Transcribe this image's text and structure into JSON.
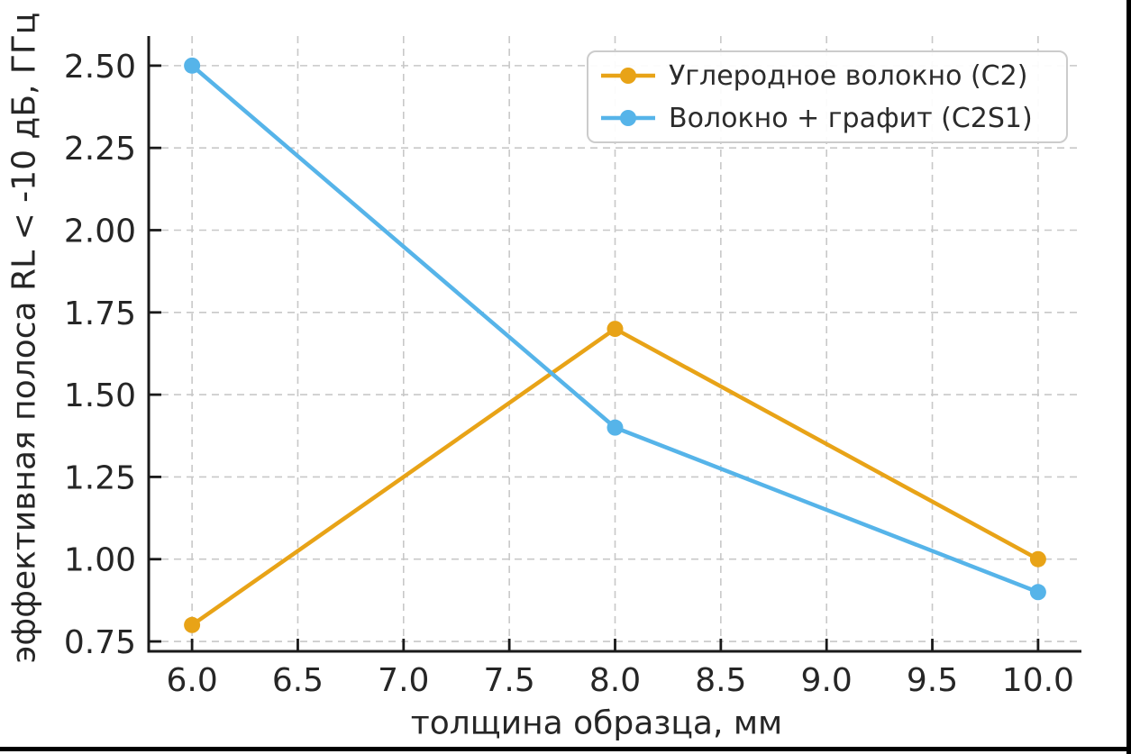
{
  "figure": {
    "xlabel": "толщина образца, мм",
    "ylabel": "эффективная полоса RL < -10 дБ, ГГц"
  },
  "chart_data": {
    "type": "line",
    "x": [
      6,
      8,
      10
    ],
    "series": [
      {
        "name": "Углеродное волокно (C2)",
        "color": "#E8A317",
        "values": [
          0.8,
          1.7,
          1.0
        ]
      },
      {
        "name": "Волокно + графит (C2S1)",
        "color": "#56B4E9",
        "values": [
          2.5,
          1.4,
          0.9
        ]
      }
    ],
    "title": "",
    "xlabel": "толщина образца, мм",
    "ylabel": "эффективная полоса RL < -10 дБ, ГГц",
    "xlim": [
      5.795,
      10.205
    ],
    "ylim": [
      0.72,
      2.59
    ],
    "x_ticks": [
      6.0,
      6.5,
      7.0,
      7.5,
      8.0,
      8.5,
      9.0,
      9.5,
      10.0
    ],
    "x_tick_labels": [
      "6.0",
      "6.5",
      "7.0",
      "7.5",
      "8.0",
      "8.5",
      "9.0",
      "9.5",
      "10.0"
    ],
    "y_ticks": [
      0.75,
      1.0,
      1.25,
      1.5,
      1.75,
      2.0,
      2.25,
      2.5
    ],
    "y_tick_labels": [
      "0.75",
      "1.00",
      "1.25",
      "1.50",
      "1.75",
      "2.00",
      "2.25",
      "2.50"
    ],
    "grid": true,
    "grid_style": "dashed",
    "legend_position": "upper right",
    "marker": "o"
  },
  "frame": {
    "right_bar_color": "#000000",
    "bottom_bar_color": "#000000"
  }
}
